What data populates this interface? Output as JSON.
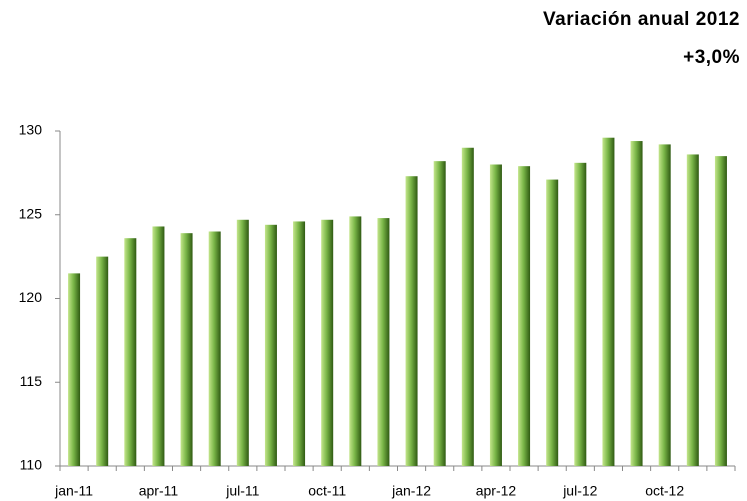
{
  "chart_data": {
    "type": "bar",
    "title": "Variación anual 2012",
    "subtitle": "+3,0%",
    "categories": [
      "jan-11",
      null,
      null,
      "apr-11",
      null,
      null,
      "jul-11",
      null,
      null,
      "oct-11",
      null,
      null,
      "jan-12",
      null,
      null,
      "apr-12",
      null,
      null,
      "jul-12",
      null,
      null,
      "oct-12",
      null,
      null
    ],
    "values": [
      121.5,
      122.5,
      123.6,
      124.3,
      123.9,
      124.0,
      124.7,
      124.4,
      124.6,
      124.7,
      124.9,
      124.8,
      127.3,
      128.2,
      129.0,
      128.0,
      127.9,
      127.1,
      128.1,
      129.6,
      129.4,
      129.2,
      128.6,
      128.5
    ],
    "color": "#7ab648",
    "ylim": [
      110,
      130
    ],
    "yticks": [
      110,
      115,
      120,
      125,
      130
    ],
    "grid": false
  }
}
